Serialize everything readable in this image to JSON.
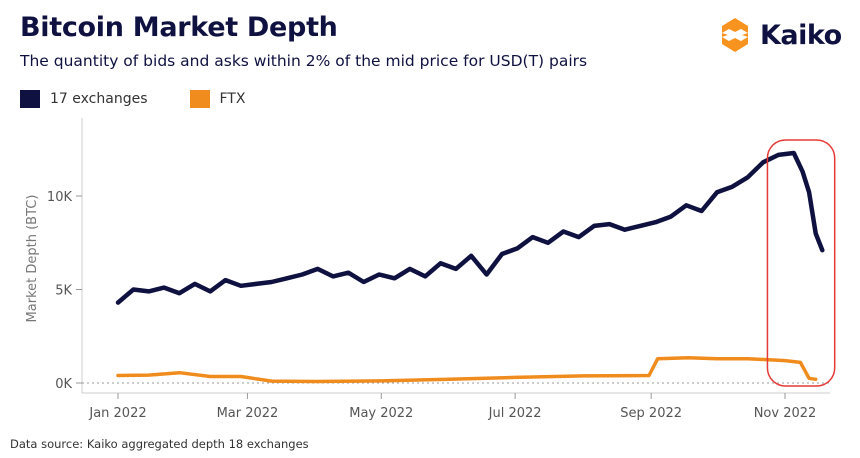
{
  "header": {
    "title": "Bitcoin Market Depth",
    "subtitle": "The quantity of bids and asks within 2% of the mid price for USD(T) pairs"
  },
  "logo": {
    "text": "Kaiko",
    "icon": "kaiko-logo-icon",
    "color": "#f7931e"
  },
  "footer": {
    "source": "Data source: Kaiko aggregated depth 18 exchanges"
  },
  "colors": {
    "exchanges": "#0f1140",
    "ftx": "#f08c1e",
    "highlight": "#e53935"
  },
  "chart_data": {
    "type": "line",
    "title": "Bitcoin Market Depth",
    "subtitle": "The quantity of bids and asks within 2% of the mid price for USD(T) pairs",
    "xlabel": "",
    "ylabel": "Market Depth (BTC)",
    "x_ticks": [
      "Jan 2022",
      "Mar 2022",
      "May 2022",
      "Jul 2022",
      "Sep 2022",
      "Nov 2022"
    ],
    "y_ticks": [
      "0K",
      "5K",
      "10K"
    ],
    "ylim": [
      0,
      13000
    ],
    "xlim": [
      "2022-01-01",
      "2022-11-20"
    ],
    "legend_position": "top-left",
    "grid": false,
    "annotation": "red rounded rectangle highlighting Oct 27 - Nov 17 2022",
    "series": [
      {
        "name": "17 exchanges",
        "x": [
          "2022-01-01",
          "2022-01-08",
          "2022-01-15",
          "2022-01-22",
          "2022-01-29",
          "2022-02-05",
          "2022-02-12",
          "2022-02-19",
          "2022-02-26",
          "2022-03-05",
          "2022-03-12",
          "2022-03-19",
          "2022-03-26",
          "2022-04-02",
          "2022-04-09",
          "2022-04-16",
          "2022-04-23",
          "2022-04-30",
          "2022-05-07",
          "2022-05-14",
          "2022-05-21",
          "2022-05-28",
          "2022-06-04",
          "2022-06-11",
          "2022-06-18",
          "2022-06-25",
          "2022-07-02",
          "2022-07-09",
          "2022-07-16",
          "2022-07-23",
          "2022-07-30",
          "2022-08-06",
          "2022-08-13",
          "2022-08-20",
          "2022-08-27",
          "2022-09-03",
          "2022-09-10",
          "2022-09-17",
          "2022-09-24",
          "2022-10-01",
          "2022-10-08",
          "2022-10-15",
          "2022-10-22",
          "2022-10-29",
          "2022-11-05",
          "2022-11-09",
          "2022-11-12",
          "2022-11-15",
          "2022-11-18"
        ],
        "values": [
          4300,
          5000,
          4900,
          5100,
          4800,
          5300,
          4900,
          5500,
          5200,
          5300,
          5400,
          5600,
          5800,
          6100,
          5700,
          5900,
          5400,
          5800,
          5600,
          6100,
          5700,
          6400,
          6100,
          6800,
          5800,
          6900,
          7200,
          7800,
          7500,
          8100,
          7800,
          8400,
          8500,
          8200,
          8400,
          8600,
          8900,
          9500,
          9200,
          10200,
          10500,
          11000,
          11800,
          12200,
          12300,
          11300,
          10200,
          8000,
          7100
        ]
      },
      {
        "name": "FTX",
        "x": [
          "2022-01-01",
          "2022-01-15",
          "2022-01-29",
          "2022-02-12",
          "2022-02-26",
          "2022-03-12",
          "2022-04-01",
          "2022-05-01",
          "2022-06-01",
          "2022-07-01",
          "2022-08-01",
          "2022-08-31",
          "2022-09-04",
          "2022-09-18",
          "2022-10-01",
          "2022-10-15",
          "2022-11-01",
          "2022-11-08",
          "2022-11-12",
          "2022-11-15"
        ],
        "values": [
          400,
          420,
          550,
          350,
          350,
          100,
          80,
          110,
          200,
          300,
          380,
          400,
          1300,
          1350,
          1300,
          1300,
          1200,
          1100,
          250,
          200
        ]
      }
    ]
  }
}
